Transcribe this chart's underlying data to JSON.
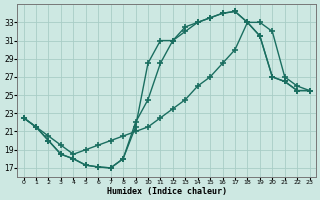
{
  "xlabel": "Humidex (Indice chaleur)",
  "bg_color": "#cde8e2",
  "grid_color": "#a8cdc6",
  "line_color": "#1a6e60",
  "curve_a_x": [
    0,
    1,
    2,
    3,
    4,
    5,
    6,
    7,
    8,
    9,
    10,
    11,
    12,
    13,
    14,
    15,
    16,
    17,
    18,
    19,
    20,
    21,
    22,
    23
  ],
  "curve_a_y": [
    22.5,
    21.5,
    20.0,
    18.5,
    18.0,
    17.3,
    17.1,
    17.0,
    18.0,
    21.5,
    28.5,
    31.0,
    31.0,
    32.5,
    33.0,
    33.5,
    34.0,
    34.2,
    33.0,
    31.5,
    27.0,
    26.5,
    25.5,
    25.5
  ],
  "curve_b_x": [
    0,
    1,
    2,
    3,
    4,
    5,
    6,
    7,
    8,
    9,
    10,
    11,
    12,
    13,
    14,
    15,
    16,
    17,
    18,
    19,
    20,
    21,
    22,
    23
  ],
  "curve_b_y": [
    22.5,
    21.5,
    20.0,
    18.5,
    18.0,
    17.3,
    17.1,
    17.0,
    18.0,
    22.0,
    24.5,
    28.5,
    31.0,
    32.0,
    33.0,
    33.5,
    34.0,
    34.2,
    33.0,
    31.5,
    27.0,
    26.5,
    25.5,
    25.5
  ],
  "curve_c_x": [
    0,
    1,
    2,
    3,
    4,
    5,
    6,
    7,
    8,
    9,
    10,
    11,
    12,
    13,
    14,
    15,
    16,
    17,
    18,
    19,
    20,
    21,
    22,
    23
  ],
  "curve_c_y": [
    22.5,
    21.5,
    20.5,
    19.5,
    18.5,
    19.0,
    19.5,
    20.0,
    20.5,
    21.0,
    21.5,
    22.5,
    23.5,
    24.5,
    26.0,
    27.0,
    28.5,
    30.0,
    33.0,
    33.0,
    32.0,
    27.0,
    26.0,
    25.5
  ],
  "xlim": [
    -0.5,
    23.5
  ],
  "ylim": [
    16.0,
    35.0
  ],
  "yticks": [
    17,
    19,
    21,
    23,
    25,
    27,
    29,
    31,
    33
  ],
  "xticks": [
    0,
    1,
    2,
    3,
    4,
    5,
    6,
    7,
    8,
    9,
    10,
    11,
    12,
    13,
    14,
    15,
    16,
    17,
    18,
    19,
    20,
    21,
    22,
    23
  ]
}
